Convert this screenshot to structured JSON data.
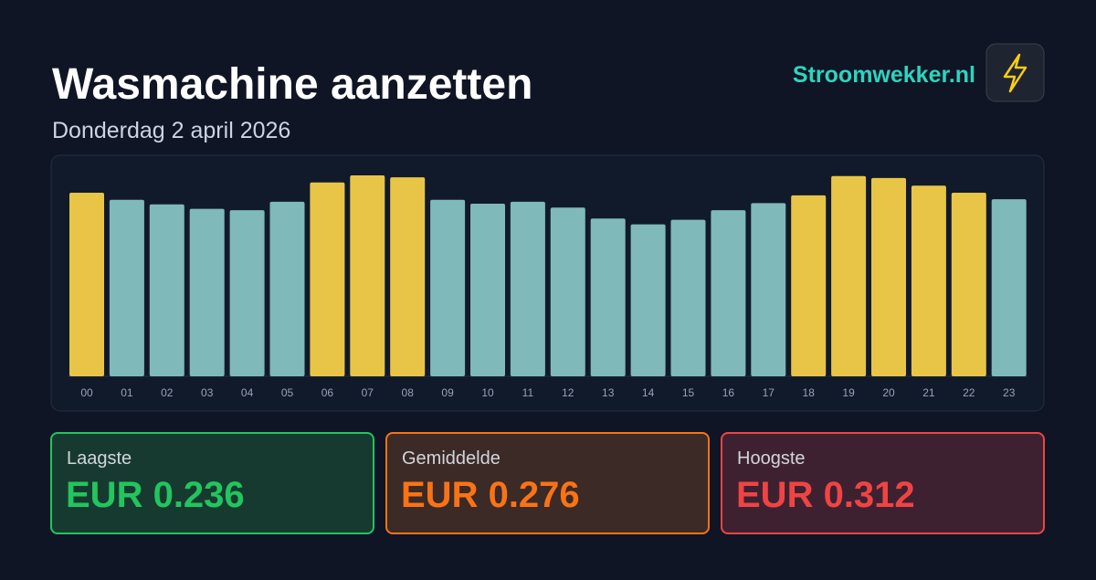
{
  "header": {
    "title": "Wasmachine aanzetten",
    "subtitle": "Donderdag 2 april 2026",
    "brand": "Stroomwekker.nl"
  },
  "chart_data": {
    "type": "bar",
    "categories": [
      "00",
      "01",
      "02",
      "03",
      "04",
      "05",
      "06",
      "07",
      "08",
      "09",
      "10",
      "11",
      "12",
      "13",
      "14",
      "15",
      "16",
      "17",
      "18",
      "19",
      "20",
      "21",
      "22",
      "23"
    ],
    "values": [
      0.285,
      0.274,
      0.267,
      0.26,
      0.258,
      0.271,
      0.301,
      0.312,
      0.309,
      0.274,
      0.268,
      0.271,
      0.262,
      0.245,
      0.236,
      0.243,
      0.258,
      0.269,
      0.281,
      0.311,
      0.308,
      0.296,
      0.285,
      0.275
    ],
    "colors": [
      "#e8c547",
      "#7fb9b9",
      "#7fb9b9",
      "#7fb9b9",
      "#7fb9b9",
      "#7fb9b9",
      "#e8c547",
      "#e8c547",
      "#e8c547",
      "#7fb9b9",
      "#7fb9b9",
      "#7fb9b9",
      "#7fb9b9",
      "#7fb9b9",
      "#7fb9b9",
      "#7fb9b9",
      "#7fb9b9",
      "#7fb9b9",
      "#e8c547",
      "#e8c547",
      "#e8c547",
      "#e8c547",
      "#e8c547",
      "#7fb9b9"
    ]
  },
  "stats": [
    {
      "label": "Laagste",
      "value": "EUR 0.236"
    },
    {
      "label": "Gemiddelde",
      "value": "EUR 0.276"
    },
    {
      "label": "Hoogste",
      "value": "EUR 0.312"
    }
  ]
}
